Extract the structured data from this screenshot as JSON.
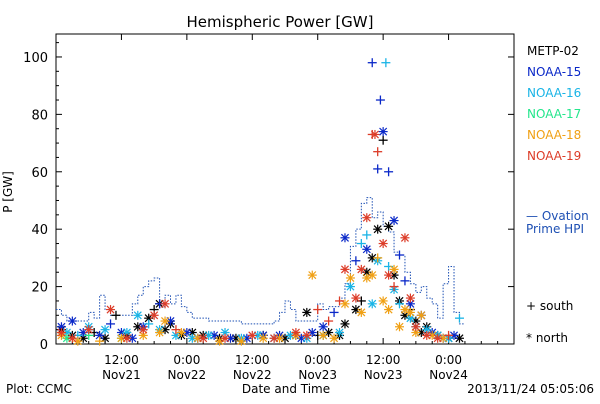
{
  "chart_data": {
    "type": "scatter",
    "title": "Hemispheric Power [GW]",
    "ylabel": "P [GW]",
    "xlabel": "Date and Time",
    "ylim": [
      0,
      108
    ],
    "yticks": [
      0,
      20,
      40,
      60,
      80,
      100
    ],
    "xlim": [
      0,
      84
    ],
    "xticks": [
      {
        "x": 12,
        "time": "12:00",
        "date": "Nov21"
      },
      {
        "x": 24,
        "time": "0:00",
        "date": "Nov22"
      },
      {
        "x": 36,
        "time": "12:00",
        "date": "Nov22"
      },
      {
        "x": 48,
        "time": "0:00",
        "date": "Nov23"
      },
      {
        "x": 60,
        "time": "12:00",
        "date": "Nov23"
      },
      {
        "x": 72,
        "time": "0:00",
        "date": "Nov24"
      }
    ],
    "legend": [
      {
        "name": "METP-02",
        "color": "#000000"
      },
      {
        "name": "NOAA-15",
        "color": "#0a28c8"
      },
      {
        "name": "NOAA-16",
        "color": "#19b4e6"
      },
      {
        "name": "NOAA-17",
        "color": "#23e68c"
      },
      {
        "name": "NOAA-18",
        "color": "#f0a014"
      },
      {
        "name": "NOAA-19",
        "color": "#dc3c28"
      }
    ],
    "ovation_label_line1": "— Ovation",
    "ovation_label_line2": "Prime HPI",
    "ovation_color": "#1e50b4",
    "marker_south_label": "+ south",
    "marker_north_label": "* north",
    "ovation_steps": [
      [
        0,
        12
      ],
      [
        1,
        10
      ],
      [
        2,
        8
      ],
      [
        6,
        11
      ],
      [
        7,
        9
      ],
      [
        8,
        17
      ],
      [
        9,
        12
      ],
      [
        10,
        10
      ],
      [
        14,
        14
      ],
      [
        15,
        17
      ],
      [
        16,
        20
      ],
      [
        17,
        22
      ],
      [
        18,
        23
      ],
      [
        19,
        13
      ],
      [
        20,
        17
      ],
      [
        21,
        14
      ],
      [
        22,
        17
      ],
      [
        23,
        13
      ],
      [
        24,
        11
      ],
      [
        25,
        9
      ],
      [
        28,
        8
      ],
      [
        34,
        7
      ],
      [
        40,
        8
      ],
      [
        41,
        11
      ],
      [
        42,
        15
      ],
      [
        43,
        12
      ],
      [
        44,
        8
      ],
      [
        48,
        14
      ],
      [
        49,
        12
      ],
      [
        50,
        13
      ],
      [
        52,
        16
      ],
      [
        53,
        21
      ],
      [
        54,
        34
      ],
      [
        55,
        40
      ],
      [
        56,
        49
      ],
      [
        57,
        51
      ],
      [
        58,
        44
      ],
      [
        59,
        46
      ],
      [
        60,
        41
      ],
      [
        61,
        39
      ],
      [
        62,
        32
      ],
      [
        63,
        31
      ],
      [
        64,
        25
      ],
      [
        65,
        21
      ],
      [
        66,
        18
      ],
      [
        67,
        20
      ],
      [
        68,
        16
      ],
      [
        69,
        14
      ],
      [
        70,
        9
      ],
      [
        71,
        21
      ],
      [
        72,
        27
      ],
      [
        73,
        11
      ],
      [
        74,
        7
      ]
    ],
    "series": [
      {
        "name": "METP-02",
        "points": [
          [
            1,
            5,
            "n"
          ],
          [
            3,
            3,
            "n"
          ],
          [
            5,
            2,
            "n"
          ],
          [
            7,
            4,
            "s"
          ],
          [
            9,
            2,
            "n"
          ],
          [
            11,
            10,
            "s"
          ],
          [
            13,
            3,
            "n"
          ],
          [
            15,
            6,
            "n"
          ],
          [
            17,
            9,
            "n"
          ],
          [
            18,
            12,
            "s"
          ],
          [
            19,
            14,
            "n"
          ],
          [
            20,
            5,
            "n"
          ],
          [
            21,
            7,
            "n"
          ],
          [
            23,
            3,
            "n"
          ],
          [
            25,
            4,
            "n"
          ],
          [
            27,
            3,
            "n"
          ],
          [
            30,
            2,
            "n"
          ],
          [
            33,
            2,
            "n"
          ],
          [
            38,
            3,
            "n"
          ],
          [
            42,
            2,
            "n"
          ],
          [
            44,
            3,
            "n"
          ],
          [
            46,
            11,
            "n"
          ],
          [
            48,
            3,
            "s"
          ],
          [
            50,
            4,
            "n"
          ],
          [
            52,
            3,
            "n"
          ],
          [
            53,
            7,
            "n"
          ],
          [
            55,
            12,
            "n"
          ],
          [
            56,
            15,
            "s"
          ],
          [
            57,
            25,
            "n"
          ],
          [
            58,
            30,
            "n"
          ],
          [
            59,
            40,
            "n"
          ],
          [
            60,
            71,
            "s"
          ],
          [
            61,
            41,
            "n"
          ],
          [
            62,
            24,
            "n"
          ],
          [
            63,
            15,
            "n"
          ],
          [
            64,
            10,
            "n"
          ],
          [
            65,
            12,
            "s"
          ],
          [
            66,
            8,
            "n"
          ],
          [
            67,
            4,
            "n"
          ],
          [
            68,
            6,
            "n"
          ],
          [
            70,
            3,
            "n"
          ],
          [
            72,
            2,
            "n"
          ],
          [
            74,
            2,
            "n"
          ]
        ]
      },
      {
        "name": "NOAA-15",
        "points": [
          [
            1,
            6,
            "n"
          ],
          [
            3,
            8,
            "n"
          ],
          [
            5,
            4,
            "n"
          ],
          [
            8,
            3,
            "n"
          ],
          [
            10,
            7,
            "s"
          ],
          [
            12,
            4,
            "n"
          ],
          [
            14,
            2,
            "n"
          ],
          [
            16,
            6,
            "n"
          ],
          [
            19,
            14,
            "s"
          ],
          [
            21,
            8,
            "n"
          ],
          [
            24,
            4,
            "n"
          ],
          [
            26,
            2,
            "n"
          ],
          [
            29,
            3,
            "n"
          ],
          [
            32,
            2,
            "n"
          ],
          [
            35,
            2,
            "n"
          ],
          [
            38,
            3,
            "n"
          ],
          [
            41,
            3,
            "n"
          ],
          [
            45,
            2,
            "n"
          ],
          [
            47,
            4,
            "n"
          ],
          [
            49,
            6,
            "n"
          ],
          [
            51,
            11,
            "s"
          ],
          [
            53,
            37,
            "n"
          ],
          [
            55,
            29,
            "s"
          ],
          [
            57,
            33,
            "n"
          ],
          [
            58,
            98,
            "s"
          ],
          [
            59,
            61,
            "s"
          ],
          [
            59.5,
            85,
            "s"
          ],
          [
            60,
            74,
            "n"
          ],
          [
            61,
            60,
            "s"
          ],
          [
            62,
            43,
            "n"
          ],
          [
            63,
            31,
            "s"
          ],
          [
            64,
            22,
            "s"
          ],
          [
            65,
            14,
            "n"
          ],
          [
            67,
            10,
            "n"
          ],
          [
            69,
            4,
            "n"
          ],
          [
            71,
            2,
            "n"
          ],
          [
            73,
            3,
            "n"
          ]
        ]
      },
      {
        "name": "NOAA-16",
        "points": [
          [
            2,
            4,
            "n"
          ],
          [
            4,
            3,
            "s"
          ],
          [
            6,
            6,
            "n"
          ],
          [
            9,
            5,
            "n"
          ],
          [
            13,
            4,
            "n"
          ],
          [
            15,
            10,
            "n"
          ],
          [
            17,
            7,
            "s"
          ],
          [
            19,
            5,
            "n"
          ],
          [
            22,
            3,
            "n"
          ],
          [
            25,
            2,
            "n"
          ],
          [
            28,
            3,
            "n"
          ],
          [
            31,
            4,
            "n"
          ],
          [
            34,
            2,
            "n"
          ],
          [
            37,
            3,
            "n"
          ],
          [
            40,
            2,
            "n"
          ],
          [
            43,
            3,
            "n"
          ],
          [
            46,
            2,
            "n"
          ],
          [
            49,
            3,
            "n"
          ],
          [
            52,
            4,
            "n"
          ],
          [
            54,
            20,
            "n"
          ],
          [
            56,
            35,
            "s"
          ],
          [
            57,
            38,
            "s"
          ],
          [
            58,
            14,
            "n"
          ],
          [
            59,
            29,
            "n"
          ],
          [
            60.5,
            98,
            "s"
          ],
          [
            61,
            27,
            "s"
          ],
          [
            62,
            19,
            "n"
          ],
          [
            63,
            14,
            "s"
          ],
          [
            65,
            9,
            "n"
          ],
          [
            66,
            6,
            "n"
          ],
          [
            68,
            5,
            "n"
          ],
          [
            70,
            3,
            "n"
          ],
          [
            72,
            2,
            "n"
          ],
          [
            74,
            9,
            "s"
          ]
        ]
      },
      {
        "name": "NOAA-17",
        "points": [
          [
            2,
            2,
            "n"
          ],
          [
            6,
            3,
            "s"
          ],
          [
            12,
            2,
            "n"
          ]
        ]
      },
      {
        "name": "NOAA-18",
        "points": [
          [
            1,
            3,
            "n"
          ],
          [
            4,
            1,
            "n"
          ],
          [
            8,
            1,
            "s"
          ],
          [
            12,
            2,
            "n"
          ],
          [
            16,
            3,
            "n"
          ],
          [
            19,
            4,
            "n"
          ],
          [
            20,
            8,
            "n"
          ],
          [
            23,
            4,
            "n"
          ],
          [
            26,
            2,
            "n"
          ],
          [
            30,
            1,
            "n"
          ],
          [
            34,
            1,
            "n"
          ],
          [
            38,
            2,
            "n"
          ],
          [
            41,
            2,
            "n"
          ],
          [
            44,
            3,
            "n"
          ],
          [
            47,
            24,
            "n"
          ],
          [
            49,
            3,
            "n"
          ],
          [
            51,
            2,
            "n"
          ],
          [
            53,
            14,
            "n"
          ],
          [
            54,
            23,
            "n"
          ],
          [
            56,
            11,
            "n"
          ],
          [
            57,
            23,
            "n"
          ],
          [
            58,
            24,
            "n"
          ],
          [
            59,
            30,
            "s"
          ],
          [
            60,
            15,
            "n"
          ],
          [
            61,
            12,
            "n"
          ],
          [
            62,
            26,
            "n"
          ],
          [
            63,
            6,
            "n"
          ],
          [
            64,
            12,
            "n"
          ],
          [
            65,
            11,
            "n"
          ],
          [
            66,
            4,
            "n"
          ],
          [
            67,
            10,
            "n"
          ],
          [
            69,
            3,
            "n"
          ],
          [
            71,
            2,
            "n"
          ]
        ]
      },
      {
        "name": "NOAA-19",
        "points": [
          [
            1,
            4,
            "n"
          ],
          [
            3,
            2,
            "n"
          ],
          [
            6,
            5,
            "n"
          ],
          [
            10,
            12,
            "n"
          ],
          [
            13,
            2,
            "n"
          ],
          [
            16,
            5,
            "n"
          ],
          [
            18,
            10,
            "n"
          ],
          [
            20,
            14,
            "n"
          ],
          [
            22,
            5,
            "s"
          ],
          [
            27,
            2,
            "n"
          ],
          [
            31,
            2,
            "n"
          ],
          [
            36,
            3,
            "n"
          ],
          [
            40,
            2,
            "n"
          ],
          [
            44,
            4,
            "n"
          ],
          [
            46,
            3,
            "n"
          ],
          [
            48,
            12,
            "s"
          ],
          [
            50,
            8,
            "s"
          ],
          [
            52,
            15,
            "s"
          ],
          [
            53,
            26,
            "n"
          ],
          [
            55,
            16,
            "n"
          ],
          [
            56,
            26,
            "n"
          ],
          [
            57,
            44,
            "n"
          ],
          [
            58,
            73,
            "s"
          ],
          [
            58.5,
            73,
            "n"
          ],
          [
            59,
            67,
            "s"
          ],
          [
            60,
            35,
            "n"
          ],
          [
            61,
            24,
            "n"
          ],
          [
            62,
            20,
            "s"
          ],
          [
            64,
            37,
            "n"
          ],
          [
            65,
            16,
            "n"
          ],
          [
            66,
            6,
            "n"
          ],
          [
            68,
            3,
            "n"
          ],
          [
            70,
            2,
            "n"
          ],
          [
            72,
            3,
            "s"
          ]
        ]
      }
    ]
  },
  "footer": {
    "plot_credit": "Plot: CCMC",
    "timestamp": "2013/11/24 05:05:06"
  }
}
